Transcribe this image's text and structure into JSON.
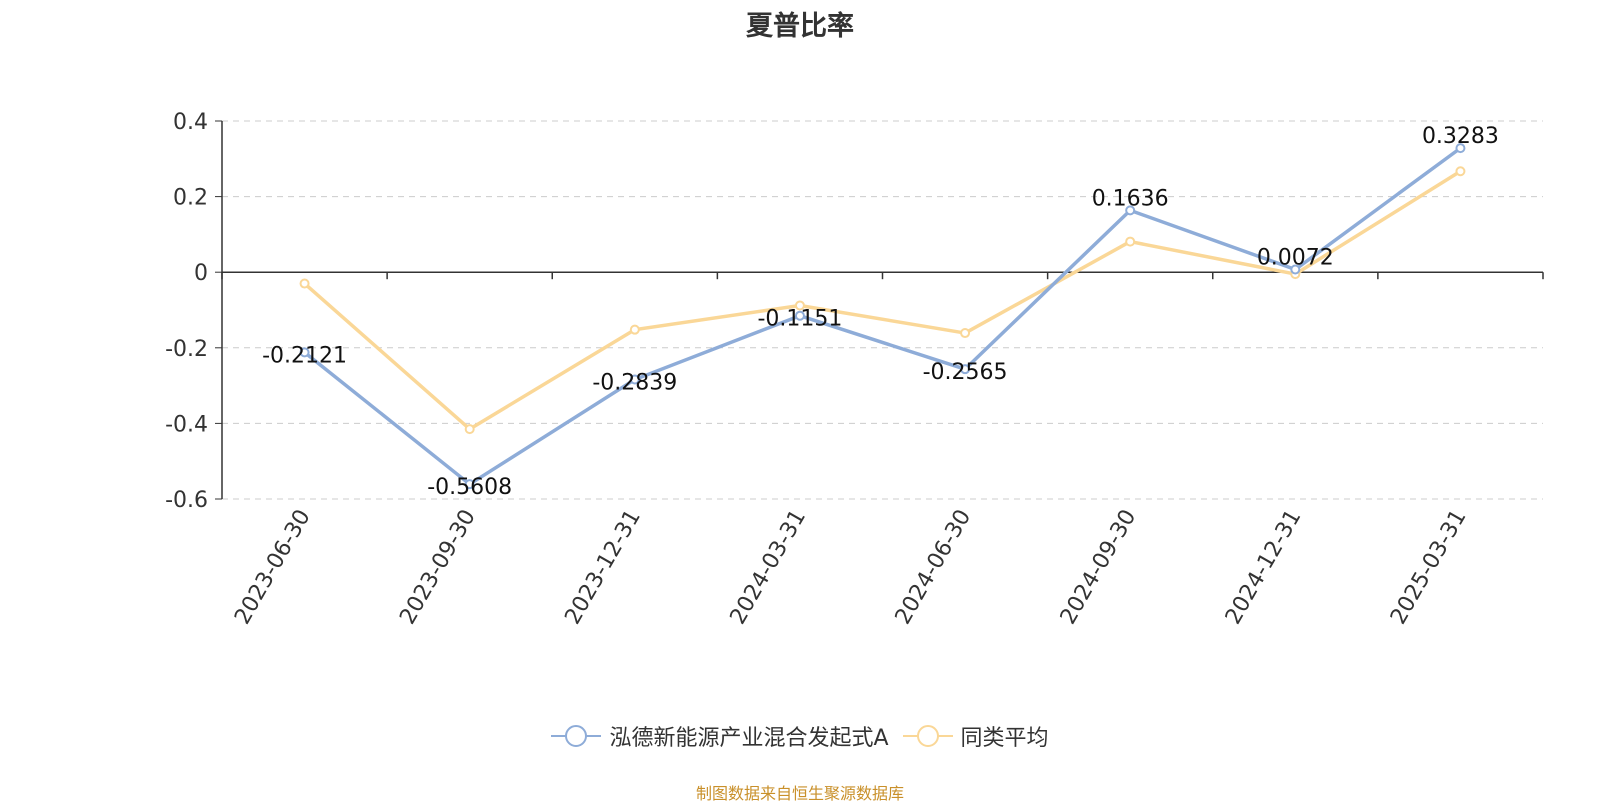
{
  "title": "夏普比率",
  "source": "制图数据来自恒生聚源数据库",
  "chart_data": {
    "type": "line",
    "title": "夏普比率",
    "categories": [
      "2023-06-30",
      "2023-09-30",
      "2023-12-31",
      "2024-03-31",
      "2024-06-30",
      "2024-09-30",
      "2024-12-31",
      "2025-03-31"
    ],
    "ylim": [
      -0.6,
      0.4
    ],
    "yticks": [
      0.4,
      0.2,
      0,
      -0.2,
      -0.4,
      -0.6
    ],
    "grid": true,
    "legend_position": "bottom",
    "series": [
      {
        "name": "泓德新能源产业混合发起式A",
        "color": "#8eacd8",
        "values": [
          -0.2121,
          -0.5608,
          -0.2839,
          -0.1151,
          -0.2565,
          0.1636,
          0.0072,
          0.3283
        ],
        "labels": [
          "-0.2121",
          "-0.5608",
          "-0.2839",
          "-0.1151",
          "-0.2565",
          "0.1636",
          "0.0072",
          "0.3283"
        ]
      },
      {
        "name": "同类平均",
        "color": "#fad797",
        "values": [
          -0.03,
          -0.415,
          -0.152,
          -0.088,
          -0.161,
          0.081,
          -0.005,
          0.267
        ]
      }
    ]
  }
}
